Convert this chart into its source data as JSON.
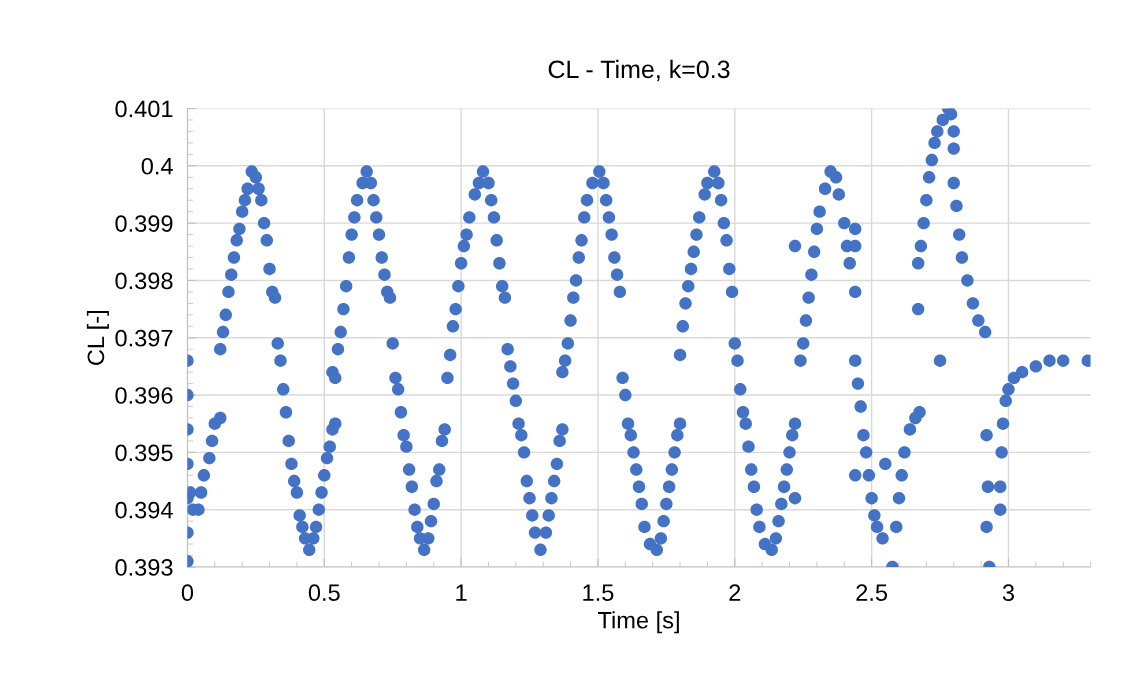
{
  "chart_data": {
    "type": "scatter",
    "title": "CL - Time, k=0.3",
    "xlabel": "Time [s]",
    "ylabel": "CL [-]",
    "xlim": [
      0,
      3.3
    ],
    "xticks": [
      0,
      0.5,
      1,
      1.5,
      2,
      2.5,
      3
    ],
    "ylim": [
      0.393,
      0.401
    ],
    "yticks": [
      0.393,
      0.394,
      0.395,
      0.396,
      0.397,
      0.398,
      0.399,
      0.4,
      0.401
    ],
    "grid": true,
    "marker": "circle",
    "series": [
      {
        "color": "#4472c4",
        "x": [
          0,
          0,
          0,
          0,
          0,
          0,
          0,
          0.01,
          0.02,
          0.04,
          0.05,
          0.06,
          0.08,
          0.09,
          0.1,
          0.12,
          0.12,
          0.13,
          0.14,
          0.15,
          0.16,
          0.17,
          0.18,
          0.19,
          0.2,
          0.21,
          0.22,
          0.235,
          0.25,
          0.26,
          0.27,
          0.28,
          0.29,
          0.3,
          0.31,
          0.32,
          0.33,
          0.34,
          0.35,
          0.36,
          0.37,
          0.38,
          0.39,
          0.4,
          0.41,
          0.42,
          0.43,
          0.445,
          0.46,
          0.47,
          0.48,
          0.49,
          0.5,
          0.51,
          0.52,
          0.53,
          0.54,
          0.53,
          0.54,
          0.55,
          0.56,
          0.57,
          0.58,
          0.59,
          0.6,
          0.61,
          0.62,
          0.64,
          0.655,
          0.67,
          0.68,
          0.69,
          0.7,
          0.71,
          0.72,
          0.73,
          0.74,
          0.75,
          0.76,
          0.77,
          0.78,
          0.79,
          0.8,
          0.81,
          0.82,
          0.83,
          0.84,
          0.85,
          0.865,
          0.88,
          0.89,
          0.9,
          0.91,
          0.92,
          0.93,
          0.94,
          0.95,
          0.96,
          0.97,
          0.98,
          0.99,
          1.0,
          1.01,
          1.02,
          1.03,
          1.05,
          1.065,
          1.08,
          1.1,
          1.11,
          1.12,
          1.13,
          1.14,
          1.15,
          1.16,
          1.17,
          1.18,
          1.19,
          1.2,
          1.21,
          1.22,
          1.23,
          1.24,
          1.25,
          1.26,
          1.27,
          1.29,
          1.31,
          1.32,
          1.33,
          1.34,
          1.35,
          1.36,
          1.37,
          1.37,
          1.38,
          1.39,
          1.4,
          1.41,
          1.42,
          1.43,
          1.44,
          1.45,
          1.46,
          1.48,
          1.505,
          1.52,
          1.53,
          1.54,
          1.55,
          1.56,
          1.57,
          1.58,
          1.59,
          1.6,
          1.61,
          1.62,
          1.63,
          1.64,
          1.65,
          1.66,
          1.67,
          1.69,
          1.715,
          1.73,
          1.74,
          1.75,
          1.76,
          1.77,
          1.78,
          1.79,
          1.8,
          1.8,
          1.81,
          1.82,
          1.83,
          1.84,
          1.85,
          1.86,
          1.87,
          1.89,
          1.9,
          1.925,
          1.94,
          1.95,
          1.96,
          1.97,
          1.98,
          1.99,
          2.0,
          2.01,
          2.02,
          2.03,
          2.04,
          2.05,
          2.06,
          2.07,
          2.08,
          2.09,
          2.11,
          2.135,
          2.15,
          2.16,
          2.17,
          2.18,
          2.19,
          2.2,
          2.21,
          2.22,
          2.22,
          2.22,
          2.24,
          2.25,
          2.26,
          2.27,
          2.28,
          2.29,
          2.3,
          2.31,
          2.33,
          2.35,
          2.37,
          2.38,
          2.4,
          2.41,
          2.42,
          2.44,
          2.44,
          2.44,
          2.44,
          2.45,
          2.46,
          2.47,
          2.48,
          2.49,
          2.5,
          2.51,
          2.52,
          2.54,
          2.55,
          2.44,
          2.576,
          2.59,
          2.6,
          2.61,
          2.62,
          2.64,
          2.66,
          2.675,
          2.67,
          2.68,
          2.69,
          2.7,
          2.71,
          2.72,
          2.73,
          2.74,
          2.76,
          2.78,
          2.79,
          2.8,
          2.8,
          2.8,
          2.67,
          2.75,
          2.81,
          2.82,
          2.83,
          2.85,
          2.87,
          2.89,
          2.915,
          2.92,
          2.925,
          2.93,
          2.92,
          2.97,
          2.97,
          2.975,
          2.98,
          2.99,
          3.0,
          3.02,
          3.05,
          3.1,
          3.15,
          3.2,
          3.29
        ],
        "values": [
          0.3931,
          0.3936,
          0.3942,
          0.3948,
          0.3954,
          0.396,
          0.3966,
          0.3943,
          0.394,
          0.394,
          0.3943,
          0.3946,
          0.3949,
          0.3952,
          0.3955,
          0.3956,
          0.3968,
          0.3971,
          0.3974,
          0.3978,
          0.3981,
          0.3984,
          0.3987,
          0.3989,
          0.3992,
          0.3994,
          0.3996,
          0.3999,
          0.3998,
          0.3996,
          0.3994,
          0.399,
          0.3987,
          0.3982,
          0.3978,
          0.3977,
          0.3969,
          0.3966,
          0.3961,
          0.3957,
          0.3952,
          0.3948,
          0.3945,
          0.3943,
          0.3939,
          0.3937,
          0.3935,
          0.3933,
          0.3935,
          0.3937,
          0.394,
          0.3943,
          0.3946,
          0.3949,
          0.3951,
          0.3954,
          0.3955,
          0.3964,
          0.3963,
          0.3968,
          0.3971,
          0.3975,
          0.3979,
          0.3984,
          0.3988,
          0.3991,
          0.3994,
          0.3997,
          0.3999,
          0.3997,
          0.3994,
          0.3991,
          0.3988,
          0.3984,
          0.3981,
          0.3978,
          0.3977,
          0.3969,
          0.3963,
          0.3961,
          0.3957,
          0.3953,
          0.3951,
          0.3947,
          0.3944,
          0.394,
          0.3937,
          0.3935,
          0.3933,
          0.3935,
          0.3938,
          0.3941,
          0.3945,
          0.3947,
          0.3952,
          0.3954,
          0.3963,
          0.3967,
          0.3972,
          0.3975,
          0.3979,
          0.3983,
          0.3986,
          0.3988,
          0.3991,
          0.3995,
          0.3997,
          0.3999,
          0.3997,
          0.3994,
          0.3991,
          0.3987,
          0.3983,
          0.3979,
          0.3977,
          0.3968,
          0.3965,
          0.3962,
          0.3959,
          0.3955,
          0.3953,
          0.395,
          0.3945,
          0.3942,
          0.3939,
          0.3936,
          0.3933,
          0.3936,
          0.3939,
          0.3942,
          0.3945,
          0.3948,
          0.3952,
          0.3954,
          0.3964,
          0.3966,
          0.3969,
          0.3973,
          0.3977,
          0.398,
          0.3984,
          0.3987,
          0.3991,
          0.3994,
          0.3997,
          0.3999,
          0.3997,
          0.3994,
          0.3991,
          0.3988,
          0.3984,
          0.3981,
          0.3978,
          0.3963,
          0.396,
          0.3955,
          0.3953,
          0.395,
          0.3947,
          0.3944,
          0.3941,
          0.3937,
          0.3934,
          0.3933,
          0.3935,
          0.3938,
          0.3941,
          0.3944,
          0.3947,
          0.395,
          0.3953,
          0.3955,
          0.3967,
          0.3972,
          0.3976,
          0.3979,
          0.3982,
          0.3985,
          0.3988,
          0.3991,
          0.3995,
          0.3997,
          0.3999,
          0.3997,
          0.3994,
          0.399,
          0.3987,
          0.3982,
          0.3978,
          0.3969,
          0.3966,
          0.3961,
          0.3957,
          0.3955,
          0.3951,
          0.3947,
          0.3944,
          0.394,
          0.3937,
          0.3934,
          0.3933,
          0.3935,
          0.3938,
          0.3941,
          0.3944,
          0.3947,
          0.395,
          0.3953,
          0.3955,
          0.3942,
          0.3986,
          0.3966,
          0.3969,
          0.3973,
          0.3977,
          0.3981,
          0.3985,
          0.3989,
          0.3992,
          0.3996,
          0.3999,
          0.3998,
          0.3995,
          0.399,
          0.3986,
          0.3983,
          0.3978,
          0.3989,
          0.3986,
          0.3966,
          0.3962,
          0.3958,
          0.3953,
          0.395,
          0.3946,
          0.3942,
          0.3939,
          0.3937,
          0.3935,
          0.3948,
          0.3946,
          0.393,
          0.3937,
          0.3942,
          0.3946,
          0.395,
          0.3954,
          0.3956,
          0.3957,
          0.3983,
          0.3986,
          0.399,
          0.3994,
          0.3998,
          0.4001,
          0.4004,
          0.4006,
          0.4008,
          0.401,
          0.4009,
          0.4006,
          0.4003,
          0.3997,
          0.3975,
          0.3966,
          0.3993,
          0.3988,
          0.3984,
          0.398,
          0.3976,
          0.3973,
          0.3971,
          0.3953,
          0.3944,
          0.393,
          0.3937,
          0.394,
          0.3944,
          0.395,
          0.3955,
          0.3959,
          0.3961,
          0.3963,
          0.3964,
          0.3965,
          0.3966,
          0.3966,
          0.3966
        ]
      }
    ]
  }
}
